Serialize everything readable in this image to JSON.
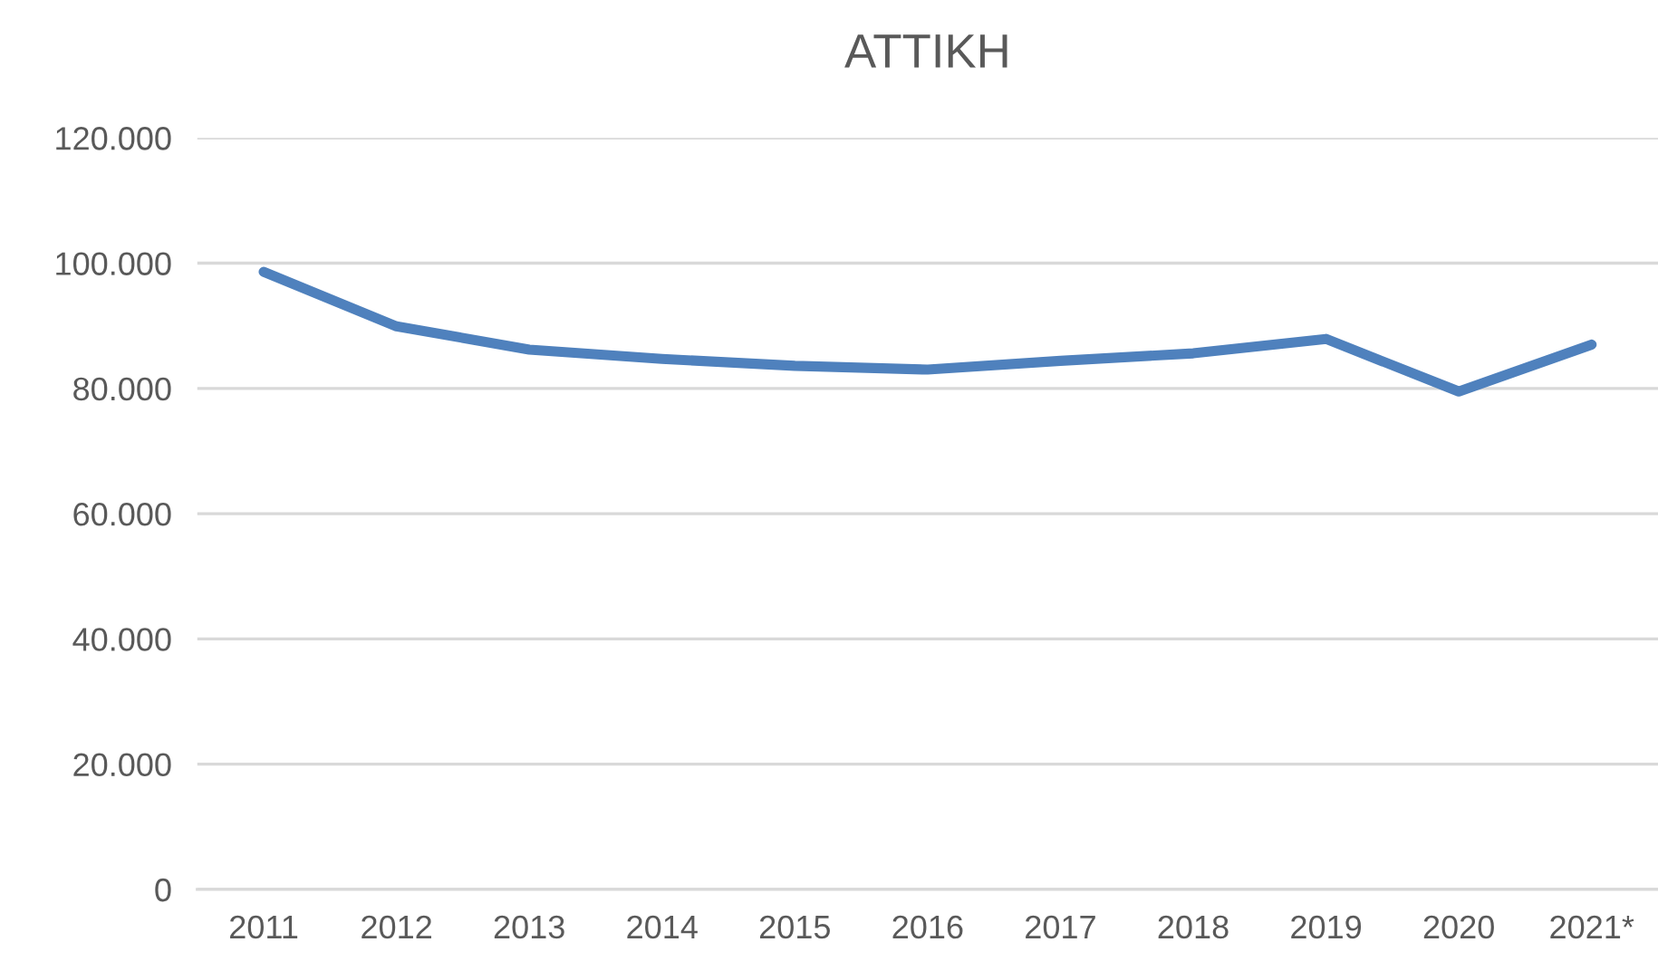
{
  "chart_data": {
    "type": "line",
    "title": "ΑΤΤΙΚΗ",
    "categories": [
      "2011",
      "2012",
      "2013",
      "2014",
      "2015",
      "2016",
      "2017",
      "2018",
      "2019",
      "2020",
      "2021*"
    ],
    "series": [
      {
        "color": "#4f81bd",
        "values": [
          98600,
          89900,
          86200,
          84700,
          83600,
          83000,
          84400,
          85600,
          87900,
          79500,
          87000
        ]
      }
    ],
    "ylim": [
      0,
      120000
    ],
    "yticks": [
      {
        "value": 0,
        "label": "0"
      },
      {
        "value": 20000,
        "label": "20.000"
      },
      {
        "value": 40000,
        "label": "40.000"
      },
      {
        "value": 60000,
        "label": "60.000"
      },
      {
        "value": 80000,
        "label": "80.000"
      },
      {
        "value": 100000,
        "label": "100.000"
      },
      {
        "value": 120000,
        "label": "120.000"
      }
    ],
    "grid": "y",
    "marker": "none",
    "line_style": "solid"
  }
}
